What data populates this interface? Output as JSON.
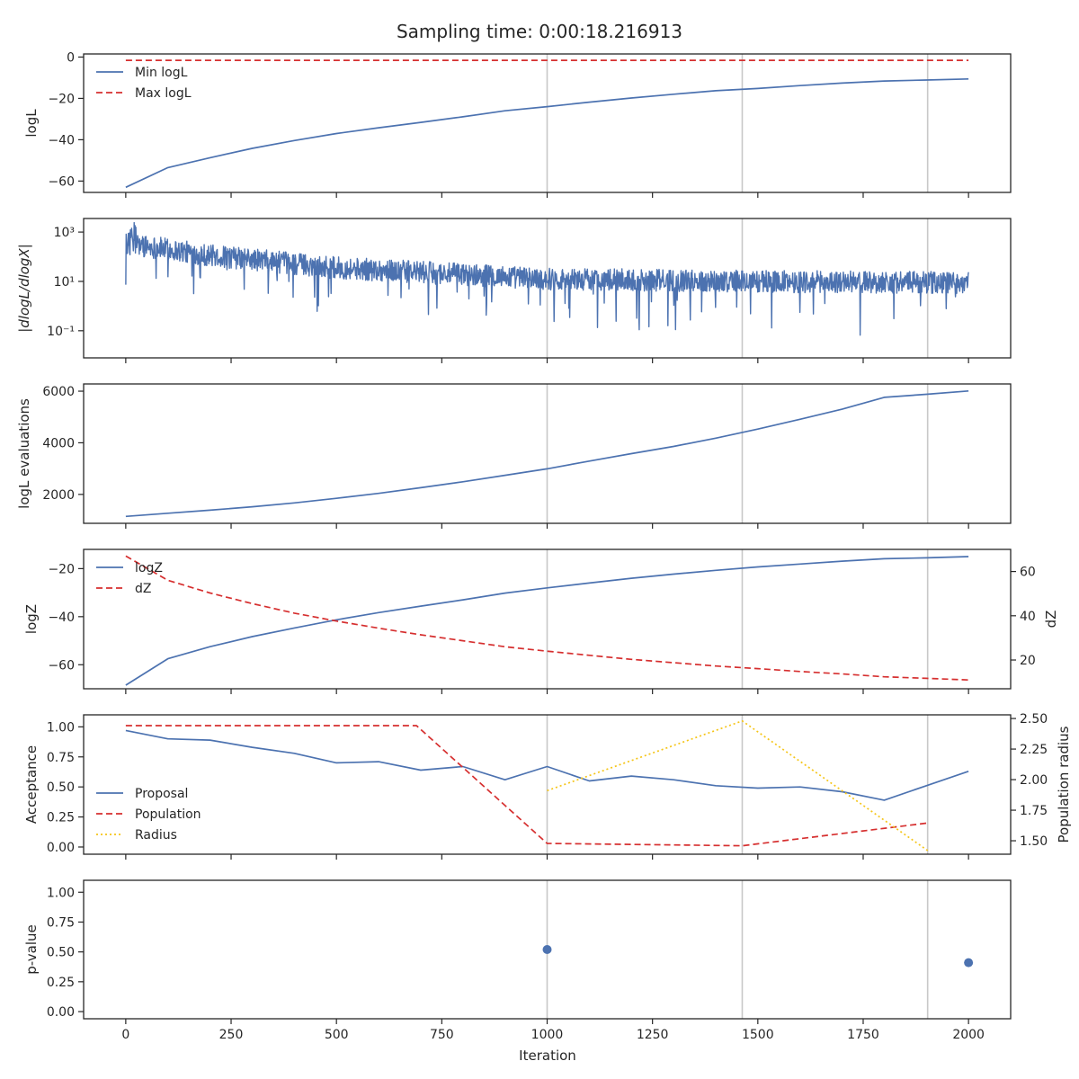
{
  "title": "Sampling time: 0:00:18.216913",
  "xlabel": "Iteration",
  "colors": {
    "blue": "#4c72b0",
    "red": "#d62f2f",
    "gold": "#f5c518",
    "grid": "#c8c8c8"
  },
  "chart_data": [
    {
      "type": "line",
      "name_key": "logl",
      "ylabel": "logL",
      "xlim": [
        -100,
        2100
      ],
      "ylim": [
        -65.5,
        1.5
      ],
      "yticks": [
        0,
        -20,
        -40,
        -60
      ],
      "ytick_labels": [
        "0",
        "−20",
        "−40",
        "−60"
      ],
      "vlines": [
        1000,
        1463,
        1903
      ],
      "legend": "upper-left",
      "series": [
        {
          "name": "Min logL",
          "color": "#4c72b0",
          "dash": "solid",
          "x": [
            0,
            100,
            200,
            300,
            400,
            500,
            600,
            700,
            800,
            900,
            1000,
            1100,
            1200,
            1300,
            1400,
            1500,
            1600,
            1700,
            1800,
            1900,
            2000
          ],
          "y": [
            -63,
            -53.5,
            -48.7,
            -44.2,
            -40.4,
            -37,
            -34.2,
            -31.6,
            -28.9,
            -26,
            -24,
            -21.8,
            -19.8,
            -18,
            -16.3,
            -15.2,
            -13.8,
            -12.6,
            -11.6,
            -11.1,
            -10.6
          ]
        },
        {
          "name": "Max logL",
          "color": "#d62f2f",
          "dash": "dashed",
          "x": [
            0,
            2000
          ],
          "y": [
            -1.6,
            -1.6
          ]
        }
      ]
    },
    {
      "type": "line",
      "name_key": "dlogl",
      "ylabel": "|dlogL/dlogX|",
      "yscale": "log",
      "xlim": [
        -100,
        2100
      ],
      "ylim_log10": [
        -2.1,
        3.55
      ],
      "yticks_log10": [
        3,
        1,
        -1
      ],
      "ytick_labels": [
        "10³",
        "10¹",
        "10⁻¹"
      ],
      "vlines": [
        1000,
        1463,
        1903
      ],
      "series": [
        {
          "name": "",
          "color": "#4c72b0",
          "dash": "solid",
          "x_start": 0,
          "x_end": 2000,
          "n_points": 2000,
          "log10_trend": [
            [
              0,
              2.55
            ],
            [
              200,
              2.05
            ],
            [
              500,
              1.55
            ],
            [
              1000,
              1.1
            ],
            [
              1500,
              1.0
            ],
            [
              2000,
              0.95
            ]
          ],
          "noise_amplitude": 0.45,
          "log10_min": -1.75,
          "log10_max": 3.5
        }
      ]
    },
    {
      "type": "line",
      "name_key": "evals",
      "ylabel": "logL evaluations",
      "xlim": [
        -100,
        2100
      ],
      "ylim": [
        880,
        6280
      ],
      "yticks": [
        6000,
        4000,
        2000
      ],
      "ytick_labels": [
        "6000",
        "4000",
        "2000"
      ],
      "vlines": [
        1000,
        1463,
        1903
      ],
      "series": [
        {
          "name": "",
          "color": "#4c72b0",
          "dash": "solid",
          "x": [
            0,
            100,
            200,
            300,
            400,
            500,
            600,
            700,
            800,
            900,
            1000,
            1100,
            1200,
            1300,
            1400,
            1500,
            1600,
            1700,
            1800,
            1900,
            2000
          ],
          "y": [
            1150,
            1270,
            1390,
            1520,
            1670,
            1850,
            2040,
            2260,
            2490,
            2740,
            2990,
            3290,
            3580,
            3860,
            4180,
            4530,
            4910,
            5300,
            5760,
            5880,
            6010
          ]
        }
      ]
    },
    {
      "type": "line",
      "name_key": "logz",
      "ylabel": "logZ",
      "ylabel_right": "dZ",
      "xlim": [
        -100,
        2100
      ],
      "ylim": [
        -70,
        -12
      ],
      "ylim_right": [
        7,
        70
      ],
      "yticks": [
        -20,
        -40,
        -60
      ],
      "ytick_labels": [
        "−20",
        "−40",
        "−60"
      ],
      "yticks_right": [
        60,
        40,
        20
      ],
      "ytick_labels_right": [
        "60",
        "40",
        "20"
      ],
      "vlines": [
        1000,
        1463,
        1903
      ],
      "legend": "upper-left",
      "series": [
        {
          "name": "logZ",
          "color": "#4c72b0",
          "dash": "solid",
          "axis": "left",
          "x": [
            0,
            100,
            200,
            300,
            400,
            500,
            600,
            700,
            800,
            900,
            1000,
            1100,
            1200,
            1300,
            1400,
            1500,
            1600,
            1700,
            1800,
            1900,
            2000
          ],
          "y": [
            -68.5,
            -57.5,
            -52.5,
            -48.3,
            -44.7,
            -41.3,
            -38.3,
            -35.6,
            -33,
            -30.2,
            -28,
            -26,
            -24,
            -22.3,
            -20.7,
            -19.3,
            -18.1,
            -16.9,
            -15.9,
            -15.5,
            -15
          ]
        },
        {
          "name": "dZ",
          "color": "#d62f2f",
          "dash": "dashed",
          "axis": "right",
          "x": [
            0,
            100,
            200,
            300,
            400,
            500,
            600,
            700,
            800,
            900,
            1000,
            1100,
            1200,
            1300,
            1400,
            1500,
            1600,
            1700,
            1800,
            1900,
            2000
          ],
          "y": [
            67,
            56,
            50.3,
            45.5,
            41.2,
            37.6,
            34.4,
            31.4,
            28.7,
            26,
            24,
            22.1,
            20.3,
            18.8,
            17.3,
            16.1,
            14.8,
            13.7,
            12.4,
            11.7,
            11
          ]
        }
      ]
    },
    {
      "type": "line",
      "name_key": "acc",
      "ylabel": "Acceptance",
      "ylabel_right": "Population radius",
      "xlim": [
        -100,
        2100
      ],
      "ylim": [
        -0.06,
        1.1
      ],
      "ylim_right": [
        1.39,
        2.53
      ],
      "yticks": [
        1.0,
        0.75,
        0.5,
        0.25,
        0.0
      ],
      "ytick_labels": [
        "1.00",
        "0.75",
        "0.50",
        "0.25",
        "0.00"
      ],
      "yticks_right": [
        2.5,
        2.25,
        2.0,
        1.75,
        1.5
      ],
      "ytick_labels_right": [
        "2.50",
        "2.25",
        "2.00",
        "1.75",
        "1.50"
      ],
      "vlines": [
        1000,
        1463,
        1903
      ],
      "legend": "lower-left",
      "series": [
        {
          "name": "Proposal",
          "color": "#4c72b0",
          "dash": "solid",
          "axis": "left",
          "x": [
            0,
            100,
            200,
            300,
            400,
            500,
            600,
            700,
            800,
            900,
            1000,
            1100,
            1200,
            1300,
            1400,
            1500,
            1600,
            1700,
            1800,
            1900,
            2000
          ],
          "y": [
            0.97,
            0.9,
            0.89,
            0.83,
            0.78,
            0.7,
            0.71,
            0.64,
            0.67,
            0.56,
            0.67,
            0.55,
            0.59,
            0.56,
            0.51,
            0.49,
            0.5,
            0.46,
            0.39,
            0.51,
            0.63
          ]
        },
        {
          "name": "Population",
          "color": "#d62f2f",
          "dash": "dashed",
          "axis": "left",
          "x": [
            0,
            690,
            1000,
            1463,
            1903
          ],
          "y": [
            1.01,
            1.01,
            0.03,
            0.01,
            0.2
          ]
        },
        {
          "name": "Radius",
          "color": "#f5c518",
          "dash": "dotted",
          "axis": "right",
          "x": [
            1000,
            1463,
            1903
          ],
          "y": [
            1.91,
            2.48,
            1.42
          ]
        }
      ]
    },
    {
      "type": "scatter",
      "name_key": "pval",
      "ylabel": "p-value",
      "xlim": [
        -100,
        2100
      ],
      "ylim": [
        -0.06,
        1.1
      ],
      "yticks": [
        1.0,
        0.75,
        0.5,
        0.25,
        0.0
      ],
      "ytick_labels": [
        "1.00",
        "0.75",
        "0.50",
        "0.25",
        "0.00"
      ],
      "xticks": [
        0,
        250,
        500,
        750,
        1000,
        1250,
        1500,
        1750,
        2000
      ],
      "xtick_labels": [
        "0",
        "250",
        "500",
        "750",
        "1000",
        "1250",
        "1500",
        "1750",
        "2000"
      ],
      "vlines": [
        1000,
        1463,
        1903
      ],
      "series": [
        {
          "name": "",
          "color": "#4c72b0",
          "x": [
            1000,
            2000
          ],
          "y": [
            0.52,
            0.41
          ]
        }
      ]
    }
  ]
}
